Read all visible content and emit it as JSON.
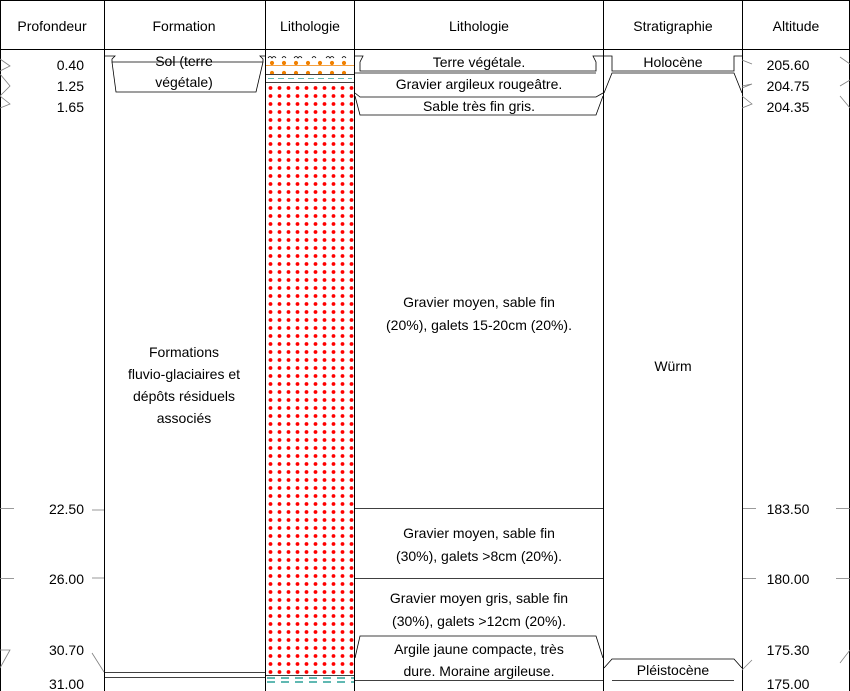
{
  "headers": {
    "profondeur": "Profondeur",
    "formation": "Formation",
    "lithologie_pattern": "Lithologie",
    "lithologie_desc": "Lithologie",
    "stratigraphie": "Stratigraphie",
    "altitude": "Altitude"
  },
  "depths": [
    "0.40",
    "1.25",
    "1.65",
    "22.50",
    "26.00",
    "30.70",
    "31.00"
  ],
  "altitudes": [
    "205.60",
    "204.75",
    "204.35",
    "183.50",
    "180.00",
    "175.30",
    "175.00"
  ],
  "formations": [
    {
      "lines": [
        "Sol (terre",
        "végétale)"
      ]
    },
    {
      "lines": [
        "Formations",
        "fluvio-glaciaires et",
        "dépôts résiduels",
        "associés"
      ]
    }
  ],
  "descriptions": [
    {
      "lines": [
        "Terre végétale."
      ]
    },
    {
      "lines": [
        "Gravier argileux rougeâtre."
      ]
    },
    {
      "lines": [
        "Sable très fin gris."
      ]
    },
    {
      "lines": [
        "Gravier moyen, sable fin",
        "(20%), galets 15-20cm (20%)."
      ]
    },
    {
      "lines": [
        "Gravier moyen, sable fin",
        "(30%), galets >8cm (20%)."
      ]
    },
    {
      "lines": [
        "Gravier moyen gris, sable fin",
        "(30%), galets >12cm (20%)."
      ]
    },
    {
      "lines": [
        "Argile jaune compacte, très",
        "dure. Moraine argileuse."
      ]
    }
  ],
  "stratigraphy": [
    "Holocène",
    "Würm",
    "Pléistocène"
  ],
  "colors": {
    "gravel_dots": "#ff0000",
    "soil_dots": "#f08000",
    "clay_lines": "#2aa198",
    "grid": "#000000",
    "tick": "#808080"
  }
}
